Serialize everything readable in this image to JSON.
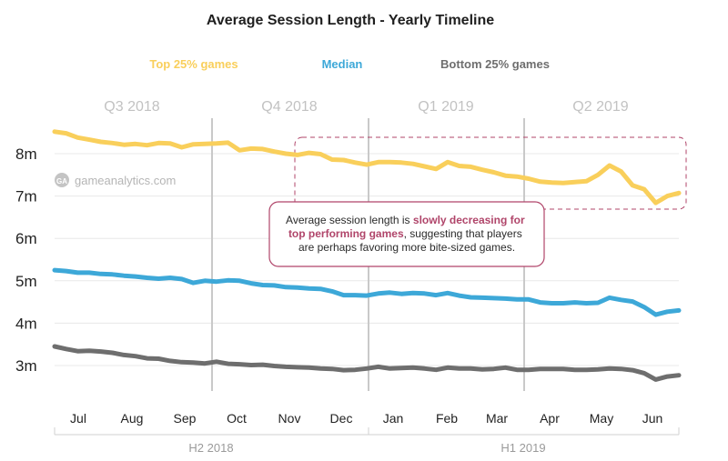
{
  "chart_data": {
    "type": "line",
    "title": "Average Session Length - Yearly Timeline",
    "y_unit": "minutes",
    "ylim": [
      2.4,
      8.7
    ],
    "yticks": [
      {
        "value": 3,
        "label": "3m"
      },
      {
        "value": 4,
        "label": "4m"
      },
      {
        "value": 5,
        "label": "5m"
      },
      {
        "value": 6,
        "label": "6m"
      },
      {
        "value": 7,
        "label": "7m"
      },
      {
        "value": 8,
        "label": "8m"
      }
    ],
    "grid": true,
    "legend_position": "top",
    "x_labels": [
      "Jul",
      "Aug",
      "Sep",
      "Oct",
      "Nov",
      "Dec",
      "Jan",
      "Feb",
      "Mar",
      "Apr",
      "May",
      "Jun"
    ],
    "quarters": [
      "Q3 2018",
      "Q4 2018",
      "Q1 2019",
      "Q2 2019"
    ],
    "halves": [
      "H2 2018",
      "H1 2019"
    ],
    "series": [
      {
        "name": "Top 25% games",
        "color": "#f9cf5b",
        "values": [
          8.52,
          8.48,
          8.38,
          8.33,
          8.28,
          8.25,
          8.21,
          8.23,
          8.2,
          8.25,
          8.24,
          8.15,
          8.22,
          8.23,
          8.24,
          8.26,
          8.08,
          8.12,
          8.11,
          8.05,
          8.0,
          7.97,
          8.02,
          7.99,
          7.86,
          7.85,
          7.79,
          7.74,
          7.8,
          7.8,
          7.79,
          7.76,
          7.7,
          7.64,
          7.8,
          7.71,
          7.69,
          7.62,
          7.56,
          7.48,
          7.46,
          7.41,
          7.34,
          7.32,
          7.31,
          7.33,
          7.35,
          7.5,
          7.72,
          7.58,
          7.25,
          7.16,
          6.84,
          7.0,
          7.07
        ]
      },
      {
        "name": "Median",
        "color": "#3da8d8",
        "values": [
          5.25,
          5.23,
          5.19,
          5.19,
          5.16,
          5.15,
          5.12,
          5.1,
          5.07,
          5.05,
          5.07,
          5.04,
          4.95,
          5.0,
          4.98,
          5.01,
          5.0,
          4.94,
          4.9,
          4.89,
          4.85,
          4.84,
          4.82,
          4.81,
          4.75,
          4.66,
          4.66,
          4.65,
          4.7,
          4.72,
          4.69,
          4.71,
          4.7,
          4.66,
          4.71,
          4.65,
          4.61,
          4.6,
          4.59,
          4.58,
          4.56,
          4.56,
          4.49,
          4.47,
          4.47,
          4.49,
          4.47,
          4.48,
          4.6,
          4.55,
          4.51,
          4.38,
          4.2,
          4.27,
          4.3
        ]
      },
      {
        "name": "Bottom 25% games",
        "color": "#6e6e6e",
        "values": [
          3.45,
          3.39,
          3.34,
          3.35,
          3.33,
          3.3,
          3.25,
          3.22,
          3.17,
          3.16,
          3.11,
          3.08,
          3.07,
          3.05,
          3.09,
          3.04,
          3.03,
          3.01,
          3.02,
          2.99,
          2.97,
          2.96,
          2.95,
          2.93,
          2.92,
          2.89,
          2.9,
          2.93,
          2.97,
          2.93,
          2.94,
          2.95,
          2.93,
          2.9,
          2.95,
          2.93,
          2.93,
          2.91,
          2.92,
          2.95,
          2.9,
          2.9,
          2.92,
          2.92,
          2.92,
          2.9,
          2.9,
          2.91,
          2.93,
          2.92,
          2.89,
          2.82,
          2.67,
          2.74,
          2.77
        ]
      }
    ]
  },
  "watermark": {
    "text": "gameanalytics.com",
    "icon": "gameanalytics-logo-icon"
  },
  "annotation": {
    "line1_pre": "Average session length is ",
    "line1_hl": "slowly decreasing for",
    "line2_hl": "top performing games",
    "line2_post": ", suggesting that players",
    "line3": "are perhaps favoring more bite-sized games.",
    "border_color": "#b0456a"
  }
}
